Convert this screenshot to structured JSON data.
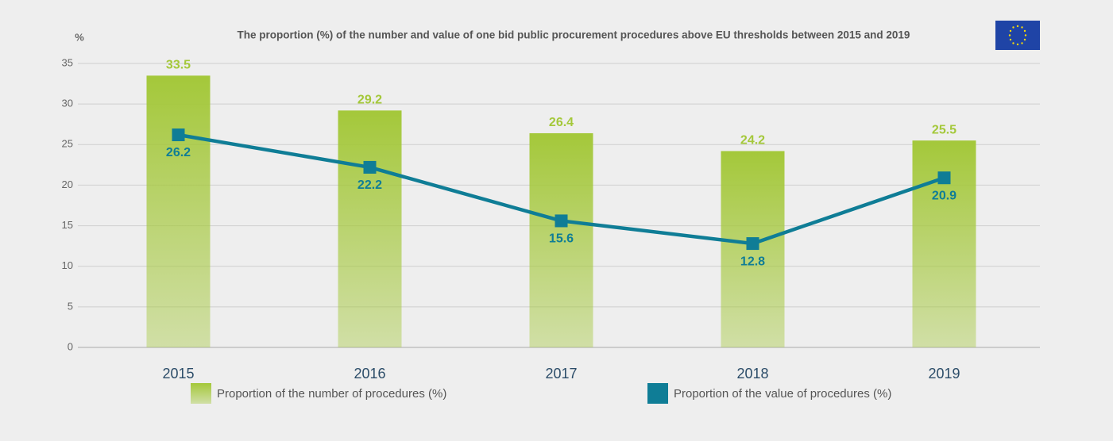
{
  "chart_data": {
    "type": "bar-line",
    "title": "The proportion (%) of the number and value of one bid public procurement procedures above EU thresholds between 2015 and 2019",
    "y_label": "%",
    "categories": [
      "2015",
      "2016",
      "2017",
      "2018",
      "2019"
    ],
    "series": [
      {
        "name": "Proportion of the number of procedures (%)",
        "type": "bar",
        "color": "#a4c83a",
        "values": [
          33.5,
          29.2,
          26.4,
          24.2,
          25.5
        ]
      },
      {
        "name": "Proportion of the value of procedures (%)",
        "type": "line",
        "color": "#0f7d96",
        "values": [
          26.2,
          22.2,
          15.6,
          12.8,
          20.9
        ]
      }
    ],
    "ylim": [
      0,
      35
    ],
    "yticks": [
      0,
      5,
      10,
      15,
      20,
      25,
      30,
      35
    ],
    "grid": true
  }
}
